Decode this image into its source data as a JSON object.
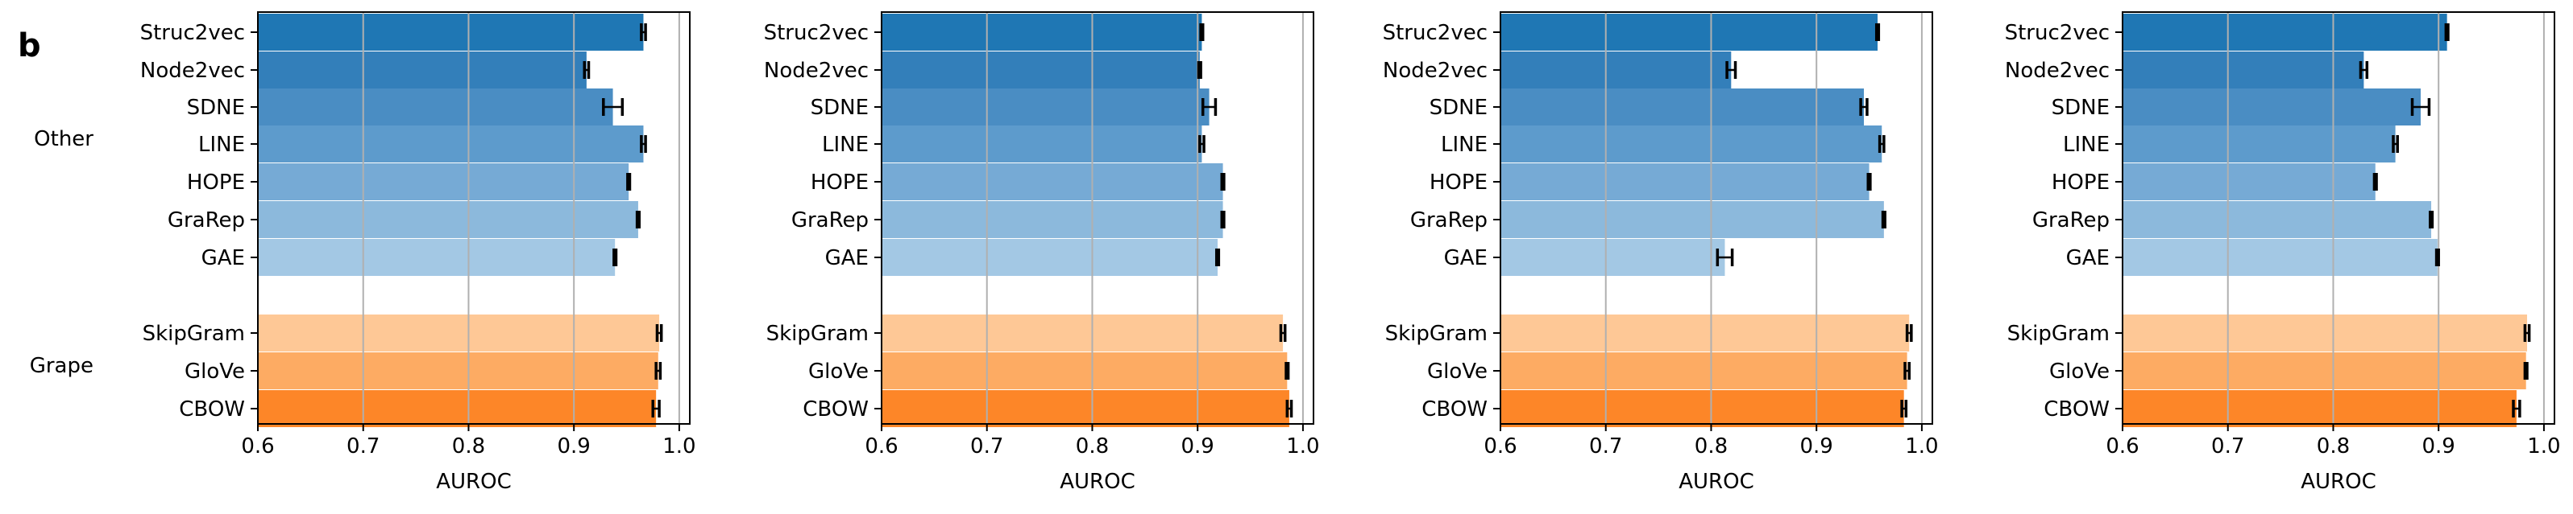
{
  "figure": {
    "panel_letter": "b",
    "group_labels": [
      "Other",
      "Grape"
    ]
  },
  "colors": {
    "other": [
      "#1f77b4",
      "#337fba",
      "#4a8dc3",
      "#5d9bcc",
      "#76aad5",
      "#8cb9dc",
      "#a3c8e4"
    ],
    "grape": [
      "#fec896",
      "#fdab63",
      "#fd8628"
    ],
    "grid": "#b0b0b0",
    "errorbar": "#000000"
  },
  "chart_data": [
    {
      "type": "bar",
      "orientation": "horizontal",
      "categories": [
        "Struc2vec",
        "Node2vec",
        "SDNE",
        "LINE",
        "HOPE",
        "GraRep",
        "GAE",
        "SkipGram",
        "GloVe",
        "CBOW"
      ],
      "groups": [
        {
          "name": "Other",
          "categories": [
            "Struc2vec",
            "Node2vec",
            "SDNE",
            "LINE",
            "HOPE",
            "GraRep",
            "GAE"
          ]
        },
        {
          "name": "Grape",
          "categories": [
            "SkipGram",
            "GloVe",
            "CBOW"
          ]
        }
      ],
      "values": [
        0.966,
        0.912,
        0.937,
        0.966,
        0.952,
        0.961,
        0.939,
        0.981,
        0.98,
        0.978
      ],
      "errors": [
        0.002,
        0.002,
        0.009,
        0.002,
        0.001,
        0.001,
        0.001,
        0.002,
        0.002,
        0.003
      ],
      "xlabel": "AUROC",
      "xlim": [
        0.6,
        1.01
      ],
      "xticks": [
        "0.6",
        "0.7",
        "0.8",
        "0.9",
        "1.0"
      ],
      "grid": "vertical"
    },
    {
      "type": "bar",
      "orientation": "horizontal",
      "categories": [
        "Struc2vec",
        "Node2vec",
        "SDNE",
        "LINE",
        "HOPE",
        "GraRep",
        "GAE",
        "SkipGram",
        "GloVe",
        "CBOW"
      ],
      "groups": [
        {
          "name": "Other",
          "categories": [
            "Struc2vec",
            "Node2vec",
            "SDNE",
            "LINE",
            "HOPE",
            "GraRep",
            "GAE"
          ]
        },
        {
          "name": "Grape",
          "categories": [
            "SkipGram",
            "GloVe",
            "CBOW"
          ]
        }
      ],
      "values": [
        0.904,
        0.902,
        0.911,
        0.904,
        0.924,
        0.924,
        0.919,
        0.981,
        0.985,
        0.987
      ],
      "errors": [
        0.001,
        0.001,
        0.006,
        0.002,
        0.001,
        0.001,
        0.001,
        0.002,
        0.001,
        0.002
      ],
      "xlabel": "AUROC",
      "xlim": [
        0.6,
        1.01
      ],
      "xticks": [
        "0.6",
        "0.7",
        "0.8",
        "0.9",
        "1.0"
      ],
      "grid": "vertical"
    },
    {
      "type": "bar",
      "orientation": "horizontal",
      "categories": [
        "Struc2vec",
        "Node2vec",
        "SDNE",
        "LINE",
        "HOPE",
        "GraRep",
        "GAE",
        "SkipGram",
        "GloVe",
        "CBOW"
      ],
      "groups": [
        {
          "name": "Other",
          "categories": [
            "Struc2vec",
            "Node2vec",
            "SDNE",
            "LINE",
            "HOPE",
            "GraRep",
            "GAE"
          ]
        },
        {
          "name": "Grape",
          "categories": [
            "SkipGram",
            "GloVe",
            "CBOW"
          ]
        }
      ],
      "values": [
        0.958,
        0.819,
        0.945,
        0.962,
        0.95,
        0.964,
        0.813,
        0.988,
        0.986,
        0.983
      ],
      "errors": [
        0.001,
        0.004,
        0.003,
        0.002,
        0.001,
        0.001,
        0.007,
        0.002,
        0.002,
        0.002
      ],
      "xlabel": "AUROC",
      "xlim": [
        0.6,
        1.01
      ],
      "xticks": [
        "0.6",
        "0.7",
        "0.8",
        "0.9",
        "1.0"
      ],
      "grid": "vertical"
    },
    {
      "type": "bar",
      "orientation": "horizontal",
      "categories": [
        "Struc2vec",
        "Node2vec",
        "SDNE",
        "LINE",
        "HOPE",
        "GraRep",
        "GAE",
        "SkipGram",
        "GloVe",
        "CBOW"
      ],
      "groups": [
        {
          "name": "Other",
          "categories": [
            "Struc2vec",
            "Node2vec",
            "SDNE",
            "LINE",
            "HOPE",
            "GraRep",
            "GAE"
          ]
        },
        {
          "name": "Grape",
          "categories": [
            "SkipGram",
            "GloVe",
            "CBOW"
          ]
        }
      ],
      "values": [
        0.908,
        0.829,
        0.883,
        0.859,
        0.84,
        0.893,
        0.899,
        0.984,
        0.983,
        0.974
      ],
      "errors": [
        0.001,
        0.003,
        0.008,
        0.002,
        0.001,
        0.001,
        0.001,
        0.002,
        0.001,
        0.003
      ],
      "xlabel": "AUROC",
      "xlim": [
        0.6,
        1.01
      ],
      "xticks": [
        "0.6",
        "0.7",
        "0.8",
        "0.9",
        "1.0"
      ],
      "grid": "vertical"
    }
  ]
}
